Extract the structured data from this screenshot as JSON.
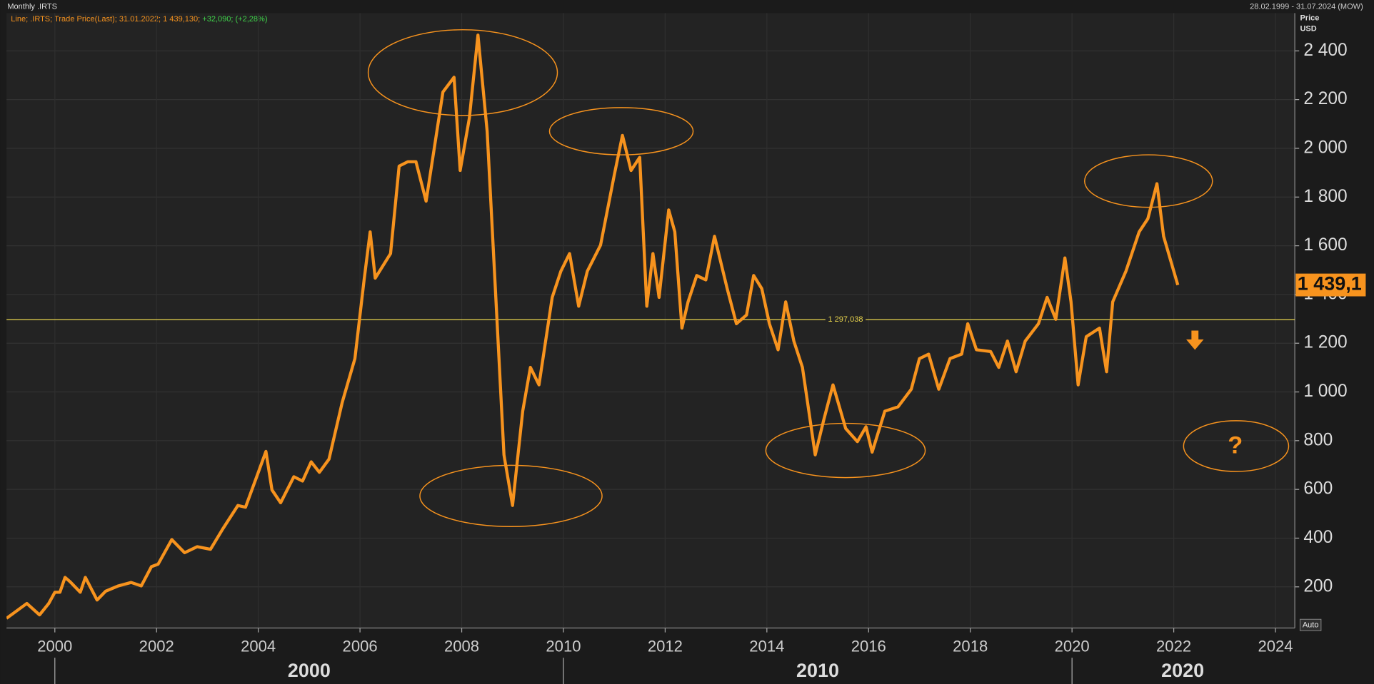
{
  "header": {
    "title": "Monthly .IRTS",
    "range": "28.02.1999 - 31.07.2024 (MOW)"
  },
  "chart_data": {
    "type": "line",
    "legend": {
      "main": "Line; .IRTS; Trade Price(Last); 31.01.2022; 1 439,130;",
      "change": "+32,090; (+2,28%)"
    },
    "y_axis_label": [
      "Price",
      "USD"
    ],
    "last_value_label": "1 439,1",
    "reference_line": {
      "value": 1297.038,
      "label": "1 297,038"
    },
    "annotation": "?",
    "auto_button": "Auto",
    "xlim": [
      1999.05,
      2024.38
    ],
    "ylim": [
      31,
      2555
    ],
    "xticks": [
      2000,
      2002,
      2004,
      2006,
      2008,
      2010,
      2012,
      2014,
      2016,
      2018,
      2020,
      2022,
      2024
    ],
    "decades": [
      2000,
      2010,
      2020
    ],
    "yticks": [
      {
        "value": 200,
        "label": "200"
      },
      {
        "value": 400,
        "label": "400"
      },
      {
        "value": 600,
        "label": "600"
      },
      {
        "value": 800,
        "label": "800"
      },
      {
        "value": 1000,
        "label": "1 000"
      },
      {
        "value": 1200,
        "label": "1 200"
      },
      {
        "value": 1400,
        "label": "1 400"
      },
      {
        "value": 1600,
        "label": "1 600"
      },
      {
        "value": 1800,
        "label": "1 800"
      },
      {
        "value": 2000,
        "label": "2 000"
      },
      {
        "value": 2200,
        "label": "2 200"
      },
      {
        "value": 2400,
        "label": "2 400"
      }
    ],
    "grid": true,
    "series": [
      {
        "name": ".IRTS",
        "color": "#f7931e",
        "x": [
          1999.05,
          1999.45,
          1999.7,
          1999.88,
          2000.0,
          2000.1,
          2000.2,
          2000.3,
          2000.5,
          2000.6,
          2000.83,
          2001.0,
          2001.25,
          2001.5,
          2001.7,
          2001.9,
          2002.03,
          2002.3,
          2002.55,
          2002.8,
          2003.06,
          2003.3,
          2003.6,
          2003.75,
          2004.0,
          2004.15,
          2004.27,
          2004.44,
          2004.7,
          2004.87,
          2005.04,
          2005.2,
          2005.39,
          2005.65,
          2005.9,
          2006.08,
          2006.2,
          2006.3,
          2006.6,
          2006.77,
          2006.94,
          2007.1,
          2007.3,
          2007.63,
          2007.85,
          2007.97,
          2008.15,
          2008.32,
          2008.5,
          2008.67,
          2008.83,
          2009.0,
          2009.2,
          2009.35,
          2009.52,
          2009.78,
          2009.95,
          2010.12,
          2010.3,
          2010.47,
          2010.73,
          2011.0,
          2011.16,
          2011.33,
          2011.5,
          2011.64,
          2011.76,
          2011.88,
          2012.07,
          2012.19,
          2012.33,
          2012.45,
          2012.62,
          2012.8,
          2012.97,
          2013.22,
          2013.4,
          2013.6,
          2013.74,
          2013.9,
          2014.05,
          2014.22,
          2014.37,
          2014.53,
          2014.7,
          2014.95,
          2015.12,
          2015.3,
          2015.55,
          2015.78,
          2015.95,
          2016.07,
          2016.32,
          2016.58,
          2016.84,
          2017.0,
          2017.18,
          2017.38,
          2017.6,
          2017.83,
          2017.95,
          2018.12,
          2018.4,
          2018.56,
          2018.73,
          2018.9,
          2019.08,
          2019.34,
          2019.51,
          2019.68,
          2019.86,
          2019.98,
          2020.12,
          2020.28,
          2020.54,
          2020.68,
          2020.8,
          2021.06,
          2021.32,
          2021.49,
          2021.67,
          2021.8,
          2022.08
        ],
        "values": [
          71,
          132,
          85,
          132,
          178,
          178,
          239,
          221,
          178,
          239,
          146,
          182,
          204,
          218,
          204,
          283,
          293,
          394,
          340,
          365,
          354,
          437,
          534,
          527,
          670,
          756,
          598,
          545,
          652,
          634,
          713,
          670,
          724,
          957,
          1137,
          1460,
          1657,
          1467,
          1568,
          1927,
          1945,
          1945,
          1783,
          2231,
          2292,
          1909,
          2124,
          2465,
          2070,
          1388,
          742,
          534,
          921,
          1101,
          1029,
          1388,
          1496,
          1568,
          1352,
          1496,
          1603,
          1891,
          2053,
          1909,
          1963,
          1352,
          1568,
          1388,
          1747,
          1657,
          1262,
          1370,
          1478,
          1460,
          1639,
          1424,
          1280,
          1316,
          1478,
          1424,
          1280,
          1173,
          1370,
          1209,
          1101,
          742,
          886,
          1029,
          850,
          796,
          857,
          753,
          921,
          939,
          1011,
          1137,
          1155,
          1011,
          1137,
          1155,
          1280,
          1173,
          1166,
          1101,
          1209,
          1083,
          1209,
          1280,
          1388,
          1298,
          1550,
          1370,
          1029,
          1227,
          1262,
          1083,
          1370,
          1496,
          1657,
          1711,
          1855,
          1639,
          1439.13
        ]
      }
    ]
  }
}
